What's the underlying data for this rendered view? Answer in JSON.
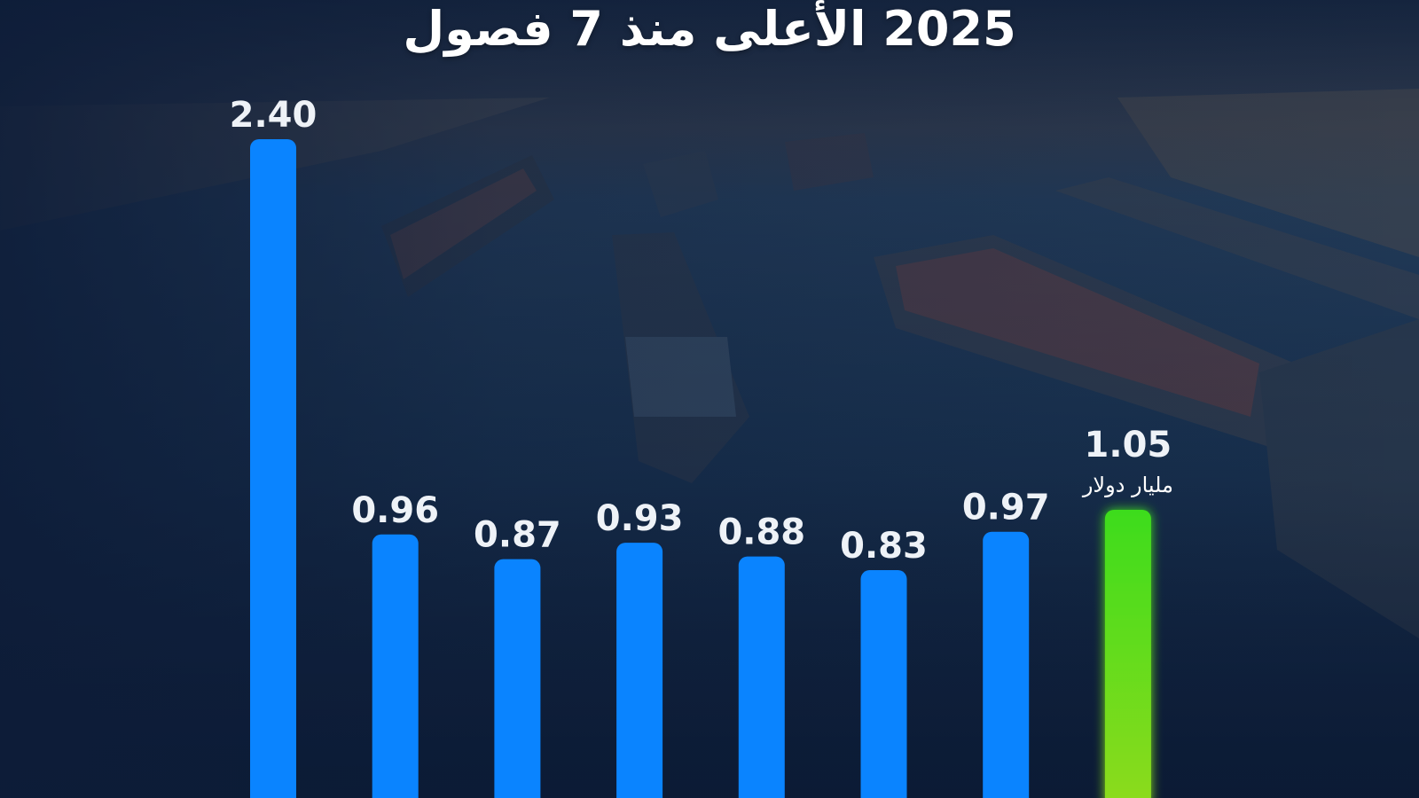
{
  "title": "2025 الأعلى منذ 7 فصول",
  "colors": {
    "bar": "#0a84ff",
    "highlight_top": "#3ddc1a",
    "highlight_bottom": "#8edb1e",
    "label": "#eef2f7"
  },
  "chart_data": {
    "type": "bar",
    "title": "2025 الأعلى منذ 7 فصول",
    "categories": [
      "",
      "",
      "",
      "",
      "",
      "",
      "",
      ""
    ],
    "values": [
      2.4,
      0.96,
      0.87,
      0.93,
      0.88,
      0.83,
      0.97,
      1.05
    ],
    "value_labels": [
      "2.40",
      "0.96",
      "0.87",
      "0.93",
      "0.88",
      "0.83",
      "0.97",
      "1.05"
    ],
    "highlight_index": 7,
    "highlight_unit": "مليار دولار",
    "ylim": [
      0,
      2.4
    ],
    "grid": false,
    "xlabel": "",
    "ylabel": ""
  }
}
